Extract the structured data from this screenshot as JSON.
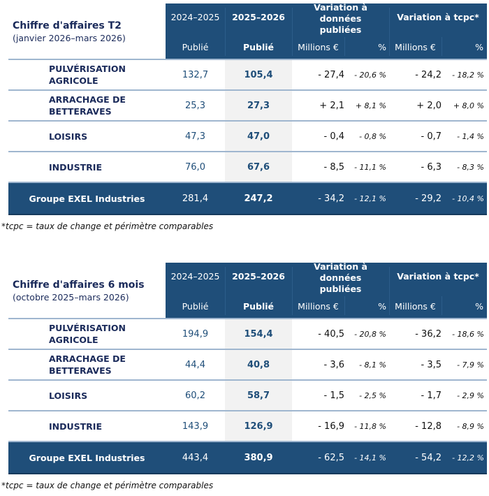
{
  "tables": [
    {
      "title": "Chiffre d'affaires T2",
      "subtitle": "(janvier 2026–mars 2026)",
      "headers": {
        "y1": "2024–2025",
        "y2": "2025–2026",
        "var_pub": "Variation à données publiées",
        "var_tcpc": "Variation à tcpc*",
        "sub_y1": "Publié",
        "sub_y2": "Publié",
        "sub_m1": "Millions €",
        "sub_p1": "%",
        "sub_m2": "Millions €",
        "sub_p2": "%"
      },
      "rows": [
        {
          "label": "PULVÉRISATION AGRICOLE",
          "v1": "132,7",
          "v2": "105,4",
          "m1": "- 27,4",
          "p1": "- 20,6 %",
          "m2": "- 24,2",
          "p2": "- 18,2 %"
        },
        {
          "label": "ARRACHAGE DE BETTERAVES",
          "v1": "25,3",
          "v2": "27,3",
          "m1": "+ 2,1",
          "p1": "+ 8,1 %",
          "m2": "+ 2,0",
          "p2": "+ 8,0 %"
        },
        {
          "label": "LOISIRS",
          "v1": "47,3",
          "v2": "47,0",
          "m1": "- 0,4",
          "p1": "- 0,8 %",
          "m2": "- 0,7",
          "p2": "- 1,4 %"
        },
        {
          "label": "INDUSTRIE",
          "v1": "76,0",
          "v2": "67,6",
          "m1": "- 8,5",
          "p1": "- 11,1 %",
          "m2": "- 6,3",
          "p2": "- 8,3 %"
        }
      ],
      "total": {
        "label": "Groupe EXEL Industries",
        "v1": "281,4",
        "v2": "247,2",
        "m1": "- 34,2",
        "p1": "- 12,1 %",
        "m2": "- 29,2",
        "p2": "- 10,4 %"
      },
      "footnote": "*tcpc = taux de change et périmètre comparables"
    },
    {
      "title": "Chiffre d'affaires 6 mois",
      "subtitle": "(octobre 2025–mars 2026)",
      "headers": {
        "y1": "2024–2025",
        "y2": "2025–2026",
        "var_pub": "Variation à données publiées",
        "var_tcpc": "Variation à tcpc*",
        "sub_y1": "Publié",
        "sub_y2": "Publié",
        "sub_m1": "Millions €",
        "sub_p1": "%",
        "sub_m2": "Millions €",
        "sub_p2": "%"
      },
      "rows": [
        {
          "label": "PULVÉRISATION AGRICOLE",
          "v1": "194,9",
          "v2": "154,4",
          "m1": "- 40,5",
          "p1": "- 20,8 %",
          "m2": "- 36,2",
          "p2": "- 18,6 %"
        },
        {
          "label": "ARRACHAGE DE BETTERAVES",
          "v1": "44,4",
          "v2": "40,8",
          "m1": "- 3,6",
          "p1": "- 8,1 %",
          "m2": "- 3,5",
          "p2": "- 7,9 %"
        },
        {
          "label": "LOISIRS",
          "v1": "60,2",
          "v2": "58,7",
          "m1": "- 1,5",
          "p1": "- 2,5 %",
          "m2": "- 1,7",
          "p2": "- 2,9 %"
        },
        {
          "label": "INDUSTRIE",
          "v1": "143,9",
          "v2": "126,9",
          "m1": "- 16,9",
          "p1": "- 11,8 %",
          "m2": "- 12,8",
          "p2": "- 8,9 %"
        }
      ],
      "total": {
        "label": "Groupe EXEL Industries",
        "v1": "443,4",
        "v2": "380,9",
        "m1": "- 62,5",
        "p1": "- 14,1 %",
        "m2": "- 54,2",
        "p2": "- 12,2 %"
      },
      "footnote": "*tcpc = taux de change et périmètre comparables"
    }
  ],
  "colors": {
    "header": "#1f4e79",
    "label": "#1a2a5a",
    "highlight_col": "#f2f2f2"
  }
}
